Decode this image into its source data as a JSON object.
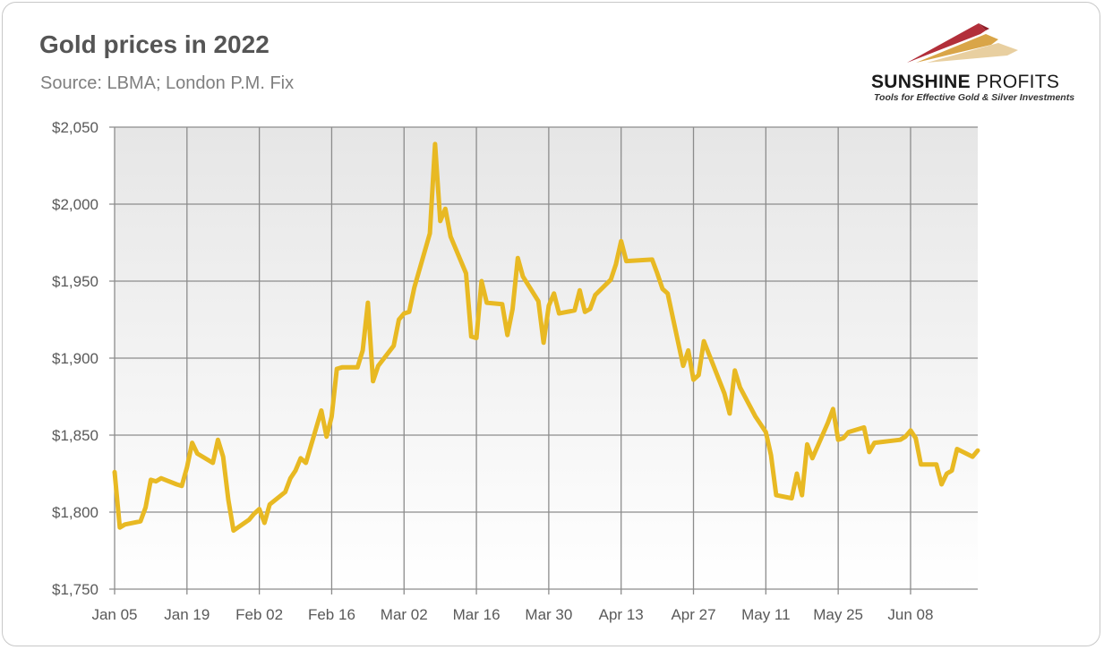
{
  "title": "Gold prices in 2022",
  "subtitle": "Source: LBMA; London P.M. Fix",
  "logo": {
    "name_bold": "SUNSHINE",
    "name_light": "PROFITS",
    "tagline": "Tools for Effective Gold & Silver Investments",
    "colors": [
      "#b22f3a",
      "#d9a548",
      "#e8cfa0"
    ]
  },
  "colors": {
    "line": "#e8b923",
    "grid": "#8c8c8c",
    "plot_bg_top": "#e6e6e6",
    "plot_bg_bottom": "#ffffff",
    "text": "#595959"
  },
  "chart_data": {
    "type": "line",
    "title": "Gold prices in 2022",
    "xlabel": "",
    "ylabel": "",
    "ylim": [
      1750,
      2050
    ],
    "grid": true,
    "legend": "none",
    "y_ticks": [
      1750,
      1800,
      1850,
      1900,
      1950,
      2000,
      2050
    ],
    "y_tick_labels": [
      "$1,750",
      "$1,800",
      "$1,850",
      "$1,900",
      "$1,950",
      "$2,000",
      "$2,050"
    ],
    "x_tick_labels": [
      "Jan 05",
      "Jan 19",
      "Feb 02",
      "Feb 16",
      "Mar 02",
      "Mar 16",
      "Mar 30",
      "Apr 13",
      "Apr 27",
      "May 11",
      "May 25",
      "Jun 08"
    ],
    "x_ticks": [
      "2022-01-05",
      "2022-01-19",
      "2022-02-02",
      "2022-02-16",
      "2022-03-02",
      "2022-03-16",
      "2022-03-30",
      "2022-04-13",
      "2022-04-27",
      "2022-05-11",
      "2022-05-25",
      "2022-06-08"
    ],
    "xlim": [
      "2022-01-05",
      "2022-06-21"
    ],
    "series": [
      {
        "values": [
          [
            "2022-01-05",
            1826
          ],
          [
            "2022-01-06",
            1790
          ],
          [
            "2022-01-07",
            1792
          ],
          [
            "2022-01-10",
            1794
          ],
          [
            "2022-01-11",
            1803
          ],
          [
            "2022-01-12",
            1821
          ],
          [
            "2022-01-13",
            1820
          ],
          [
            "2022-01-14",
            1822
          ],
          [
            "2022-01-17",
            1818
          ],
          [
            "2022-01-18",
            1817
          ],
          [
            "2022-01-19",
            1829
          ],
          [
            "2022-01-20",
            1845
          ],
          [
            "2022-01-21",
            1838
          ],
          [
            "2022-01-24",
            1832
          ],
          [
            "2022-01-25",
            1847
          ],
          [
            "2022-01-26",
            1836
          ],
          [
            "2022-01-27",
            1808
          ],
          [
            "2022-01-28",
            1788
          ],
          [
            "2022-01-31",
            1795
          ],
          [
            "2022-02-01",
            1799
          ],
          [
            "2022-02-02",
            1802
          ],
          [
            "2022-02-03",
            1793
          ],
          [
            "2022-02-04",
            1805
          ],
          [
            "2022-02-07",
            1813
          ],
          [
            "2022-02-08",
            1822
          ],
          [
            "2022-02-09",
            1827
          ],
          [
            "2022-02-10",
            1835
          ],
          [
            "2022-02-11",
            1832
          ],
          [
            "2022-02-14",
            1866
          ],
          [
            "2022-02-15",
            1849
          ],
          [
            "2022-02-16",
            1862
          ],
          [
            "2022-02-17",
            1893
          ],
          [
            "2022-02-18",
            1894
          ],
          [
            "2022-02-21",
            1894
          ],
          [
            "2022-02-22",
            1905
          ],
          [
            "2022-02-23",
            1936
          ],
          [
            "2022-02-24",
            1885
          ],
          [
            "2022-02-25",
            1895
          ],
          [
            "2022-02-28",
            1908
          ],
          [
            "2022-03-01",
            1925
          ],
          [
            "2022-03-02",
            1929
          ],
          [
            "2022-03-03",
            1930
          ],
          [
            "2022-03-04",
            1946
          ],
          [
            "2022-03-07",
            1981
          ],
          [
            "2022-03-08",
            2039
          ],
          [
            "2022-03-09",
            1989
          ],
          [
            "2022-03-10",
            1997
          ],
          [
            "2022-03-11",
            1979
          ],
          [
            "2022-03-14",
            1955
          ],
          [
            "2022-03-15",
            1914
          ],
          [
            "2022-03-16",
            1913
          ],
          [
            "2022-03-17",
            1950
          ],
          [
            "2022-03-18",
            1936
          ],
          [
            "2022-03-21",
            1935
          ],
          [
            "2022-03-22",
            1915
          ],
          [
            "2022-03-23",
            1932
          ],
          [
            "2022-03-24",
            1965
          ],
          [
            "2022-03-25",
            1953
          ],
          [
            "2022-03-28",
            1937
          ],
          [
            "2022-03-29",
            1910
          ],
          [
            "2022-03-30",
            1934
          ],
          [
            "2022-03-31",
            1942
          ],
          [
            "2022-04-01",
            1929
          ],
          [
            "2022-04-04",
            1931
          ],
          [
            "2022-04-05",
            1944
          ],
          [
            "2022-04-06",
            1930
          ],
          [
            "2022-04-07",
            1932
          ],
          [
            "2022-04-08",
            1941
          ],
          [
            "2022-04-11",
            1951
          ],
          [
            "2022-04-12",
            1961
          ],
          [
            "2022-04-13",
            1976
          ],
          [
            "2022-04-14",
            1963
          ],
          [
            "2022-04-19",
            1964
          ],
          [
            "2022-04-20",
            1955
          ],
          [
            "2022-04-21",
            1945
          ],
          [
            "2022-04-22",
            1942
          ],
          [
            "2022-04-25",
            1895
          ],
          [
            "2022-04-26",
            1905
          ],
          [
            "2022-04-27",
            1886
          ],
          [
            "2022-04-28",
            1889
          ],
          [
            "2022-04-29",
            1911
          ],
          [
            "2022-05-03",
            1877
          ],
          [
            "2022-05-04",
            1864
          ],
          [
            "2022-05-05",
            1892
          ],
          [
            "2022-05-06",
            1881
          ],
          [
            "2022-05-09",
            1862
          ],
          [
            "2022-05-10",
            1857
          ],
          [
            "2022-05-11",
            1852
          ],
          [
            "2022-05-12",
            1837
          ],
          [
            "2022-05-13",
            1811
          ],
          [
            "2022-05-16",
            1809
          ],
          [
            "2022-05-17",
            1825
          ],
          [
            "2022-05-18",
            1811
          ],
          [
            "2022-05-19",
            1844
          ],
          [
            "2022-05-20",
            1835
          ],
          [
            "2022-05-23",
            1858
          ],
          [
            "2022-05-24",
            1867
          ],
          [
            "2022-05-25",
            1847
          ],
          [
            "2022-05-26",
            1848
          ],
          [
            "2022-05-27",
            1852
          ],
          [
            "2022-05-30",
            1855
          ],
          [
            "2022-05-31",
            1839
          ],
          [
            "2022-06-01",
            1845
          ],
          [
            "2022-06-06",
            1847
          ],
          [
            "2022-06-07",
            1849
          ],
          [
            "2022-06-08",
            1853
          ],
          [
            "2022-06-09",
            1848
          ],
          [
            "2022-06-10",
            1831
          ],
          [
            "2022-06-13",
            1831
          ],
          [
            "2022-06-14",
            1818
          ],
          [
            "2022-06-15",
            1825
          ],
          [
            "2022-06-16",
            1827
          ],
          [
            "2022-06-17",
            1841
          ],
          [
            "2022-06-20",
            1836
          ],
          [
            "2022-06-21",
            1840
          ]
        ]
      }
    ]
  }
}
